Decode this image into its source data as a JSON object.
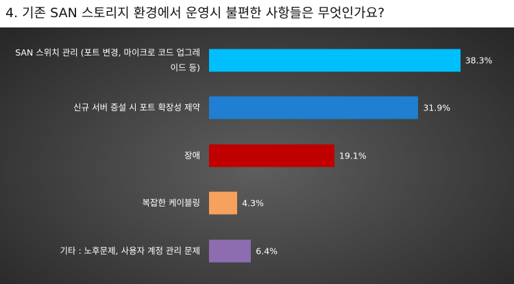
{
  "chart_data": {
    "type": "bar",
    "orientation": "horizontal",
    "title": "4. 기존 SAN 스토리지 환경에서 운영시 불편한 사항들은 무엇인가요?",
    "categories": [
      "SAN 스위치 관리 (포트 변경, 마이크로 코드 업그레이드 등)",
      "신규 서버 증설 시 포트 확장성 제약",
      "장애",
      "복잡한 케이블링",
      "기타 : 노후문제, 사용자 계정 관리 문제"
    ],
    "values": [
      38.3,
      31.9,
      19.1,
      4.3,
      6.4
    ],
    "value_labels": [
      "38.3%",
      "31.9%",
      "19.1%",
      "4.3%",
      "6.4%"
    ],
    "colors": [
      "#00bfff",
      "#1f7fd2",
      "#c00000",
      "#f8a15c",
      "#8e6cb0"
    ],
    "xlim": [
      0,
      40
    ]
  }
}
